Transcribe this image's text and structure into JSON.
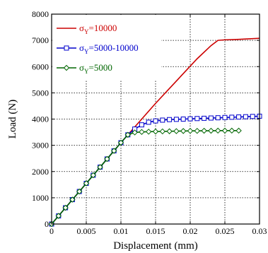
{
  "chart_data": {
    "type": "line",
    "title": "",
    "xlabel": "Displacement  (mm)",
    "ylabel": "Load  (N)",
    "xlim": [
      0,
      0.03
    ],
    "ylim": [
      0,
      8000
    ],
    "xticks": [
      0,
      0.005,
      0.01,
      0.015,
      0.02,
      0.025,
      0.03
    ],
    "xtick_labels": [
      "0",
      "0.005",
      "0.01",
      "0.015",
      "0.02",
      "0.025",
      "0.03"
    ],
    "yticks": [
      0,
      1000,
      2000,
      3000,
      4000,
      5000,
      6000,
      7000,
      8000
    ],
    "ytick_labels": [
      "0",
      "1000",
      "2000",
      "3000",
      "4000",
      "5000",
      "6000",
      "7000",
      "8000"
    ],
    "grid": true,
    "legend_position": "top-left",
    "series": [
      {
        "name": "σY=10000",
        "legend_main": "σ",
        "legend_sub": "Y",
        "legend_rest": "=10000",
        "color": "#cc0000",
        "marker": "none",
        "x": [
          0,
          0.005,
          0.01,
          0.012,
          0.015,
          0.018,
          0.021,
          0.023,
          0.024,
          0.025,
          0.027,
          0.03
        ],
        "y": [
          0,
          1550,
          3100,
          3700,
          4600,
          5450,
          6300,
          6800,
          7000,
          7020,
          7040,
          7080
        ]
      },
      {
        "name": "σY=5000-10000",
        "legend_main": "σ",
        "legend_sub": "Y",
        "legend_rest": "=5000-10000",
        "color": "#0000cc",
        "marker": "square",
        "x": [
          0,
          0.001,
          0.002,
          0.003,
          0.004,
          0.005,
          0.006,
          0.007,
          0.008,
          0.009,
          0.01,
          0.011,
          0.012,
          0.013,
          0.014,
          0.015,
          0.016,
          0.017,
          0.018,
          0.019,
          0.02,
          0.021,
          0.022,
          0.023,
          0.024,
          0.025,
          0.026,
          0.027,
          0.028,
          0.029,
          0.03
        ],
        "y": [
          0,
          310,
          620,
          930,
          1240,
          1550,
          1860,
          2170,
          2480,
          2790,
          3100,
          3400,
          3620,
          3780,
          3880,
          3930,
          3960,
          3980,
          3990,
          4000,
          4010,
          4020,
          4030,
          4040,
          4050,
          4060,
          4070,
          4080,
          4090,
          4100,
          4110
        ]
      },
      {
        "name": "σY=5000",
        "legend_main": "σ",
        "legend_sub": "Y",
        "legend_rest": "=5000",
        "color": "#006600",
        "marker": "diamond",
        "x": [
          0,
          0.001,
          0.002,
          0.003,
          0.004,
          0.005,
          0.006,
          0.007,
          0.008,
          0.009,
          0.01,
          0.011,
          0.012,
          0.013,
          0.014,
          0.015,
          0.016,
          0.017,
          0.018,
          0.019,
          0.02,
          0.021,
          0.022,
          0.023,
          0.024,
          0.025,
          0.026,
          0.027
        ],
        "y": [
          0,
          310,
          620,
          930,
          1240,
          1550,
          1860,
          2170,
          2480,
          2790,
          3100,
          3400,
          3490,
          3510,
          3520,
          3525,
          3530,
          3535,
          3540,
          3545,
          3550,
          3550,
          3555,
          3555,
          3560,
          3560,
          3560,
          3560
        ]
      }
    ]
  }
}
